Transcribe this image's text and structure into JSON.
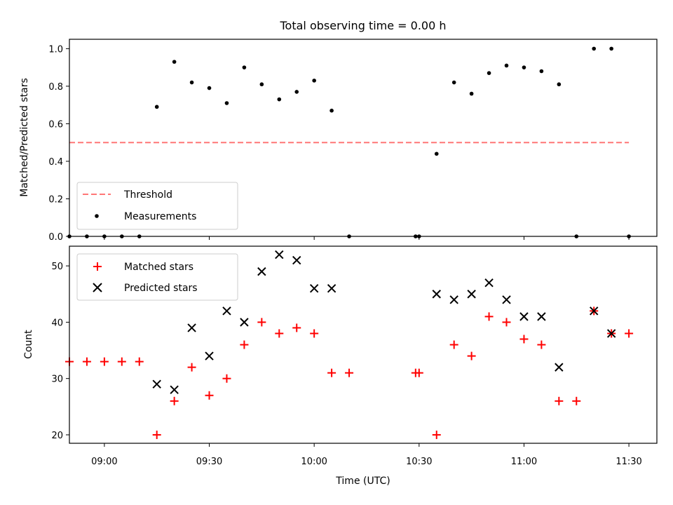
{
  "chart_data": [
    {
      "type": "scatter",
      "title": "Total observing time = 0.00 h",
      "xlabel": "",
      "ylabel": "Matched/Predicted stars",
      "xlim": [
        "08:50",
        "11:38"
      ],
      "ylim": [
        0,
        1.05
      ],
      "yticks": [
        "0.0",
        "0.2",
        "0.4",
        "0.6",
        "0.8",
        "1.0"
      ],
      "grid": false,
      "legend": "lower-left",
      "threshold": {
        "name": "Threshold",
        "value": 0.5,
        "x": [
          "08:50",
          "11:30"
        ],
        "color": "#ff7777",
        "style": "dashed"
      },
      "series": [
        {
          "name": "Measurements",
          "color": "#000000",
          "marker": "dot",
          "points": [
            [
              "08:50",
              0.0
            ],
            [
              "08:55",
              0.0
            ],
            [
              "09:00",
              0.0
            ],
            [
              "09:05",
              0.0
            ],
            [
              "09:10",
              0.0
            ],
            [
              "09:15",
              0.69
            ],
            [
              "09:20",
              0.93
            ],
            [
              "09:25",
              0.82
            ],
            [
              "09:30",
              0.79
            ],
            [
              "09:35",
              0.71
            ],
            [
              "09:40",
              0.9
            ],
            [
              "09:45",
              0.81
            ],
            [
              "09:50",
              0.73
            ],
            [
              "09:55",
              0.77
            ],
            [
              "10:00",
              0.83
            ],
            [
              "10:05",
              0.67
            ],
            [
              "10:10",
              0.0
            ],
            [
              "10:29",
              0.0
            ],
            [
              "10:30",
              0.0
            ],
            [
              "10:35",
              0.44
            ],
            [
              "10:40",
              0.82
            ],
            [
              "10:45",
              0.76
            ],
            [
              "10:50",
              0.87
            ],
            [
              "10:55",
              0.91
            ],
            [
              "11:00",
              0.9
            ],
            [
              "11:05",
              0.88
            ],
            [
              "11:10",
              0.81
            ],
            [
              "11:15",
              0.0
            ],
            [
              "11:20",
              1.0
            ],
            [
              "11:25",
              1.0
            ],
            [
              "11:30",
              0.0
            ]
          ]
        }
      ]
    },
    {
      "type": "scatter",
      "title": "",
      "xlabel": "Time (UTC)",
      "ylabel": "Count",
      "xlim": [
        "08:50",
        "11:38"
      ],
      "xticks": [
        "09:00",
        "09:30",
        "10:00",
        "10:30",
        "11:00",
        "11:30"
      ],
      "ylim": [
        18.5,
        53.5
      ],
      "yticks": [
        "20",
        "30",
        "40",
        "50"
      ],
      "grid": false,
      "legend": "upper-left",
      "series": [
        {
          "name": "Matched stars",
          "color": "#ff0000",
          "marker": "plus",
          "points": [
            [
              "08:50",
              33
            ],
            [
              "08:55",
              33
            ],
            [
              "09:00",
              33
            ],
            [
              "09:05",
              33
            ],
            [
              "09:10",
              33
            ],
            [
              "09:15",
              20
            ],
            [
              "09:20",
              26
            ],
            [
              "09:25",
              32
            ],
            [
              "09:30",
              27
            ],
            [
              "09:35",
              30
            ],
            [
              "09:40",
              36
            ],
            [
              "09:45",
              40
            ],
            [
              "09:50",
              38
            ],
            [
              "09:55",
              39
            ],
            [
              "10:00",
              38
            ],
            [
              "10:05",
              31
            ],
            [
              "10:10",
              31
            ],
            [
              "10:29",
              31
            ],
            [
              "10:30",
              31
            ],
            [
              "10:35",
              20
            ],
            [
              "10:40",
              36
            ],
            [
              "10:45",
              34
            ],
            [
              "10:50",
              41
            ],
            [
              "10:55",
              40
            ],
            [
              "11:00",
              37
            ],
            [
              "11:05",
              36
            ],
            [
              "11:10",
              26
            ],
            [
              "11:15",
              26
            ],
            [
              "11:20",
              42
            ],
            [
              "11:25",
              38
            ],
            [
              "11:30",
              38
            ]
          ]
        },
        {
          "name": "Predicted stars",
          "color": "#000000",
          "marker": "x",
          "points": [
            [
              "09:15",
              29
            ],
            [
              "09:20",
              28
            ],
            [
              "09:25",
              39
            ],
            [
              "09:30",
              34
            ],
            [
              "09:35",
              42
            ],
            [
              "09:40",
              40
            ],
            [
              "09:45",
              49
            ],
            [
              "09:50",
              52
            ],
            [
              "09:55",
              51
            ],
            [
              "10:00",
              46
            ],
            [
              "10:05",
              46
            ],
            [
              "10:35",
              45
            ],
            [
              "10:40",
              44
            ],
            [
              "10:45",
              45
            ],
            [
              "10:50",
              47
            ],
            [
              "10:55",
              44
            ],
            [
              "11:00",
              41
            ],
            [
              "11:05",
              41
            ],
            [
              "11:10",
              32
            ],
            [
              "11:20",
              42
            ],
            [
              "11:25",
              38
            ]
          ]
        }
      ]
    }
  ]
}
